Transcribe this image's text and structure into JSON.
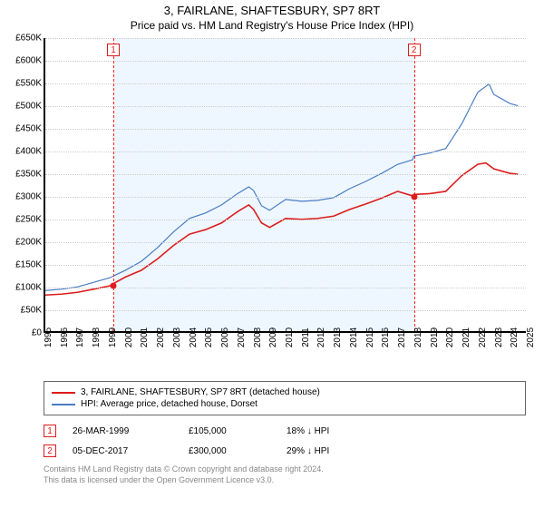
{
  "titles": {
    "line1": "3, FAIRLANE, SHAFTESBURY, SP7 8RT",
    "line2": "Price paid vs. HM Land Registry's House Price Index (HPI)"
  },
  "chart": {
    "type": "line",
    "x_start_year": 1995,
    "x_end_year": 2025,
    "x_tick_years": [
      1995,
      1996,
      1997,
      1998,
      1999,
      2000,
      2001,
      2002,
      2003,
      2004,
      2005,
      2006,
      2007,
      2008,
      2009,
      2010,
      2011,
      2012,
      2013,
      2014,
      2015,
      2016,
      2017,
      2018,
      2019,
      2020,
      2021,
      2022,
      2023,
      2024,
      2025
    ],
    "ylim": [
      0,
      650
    ],
    "ytick_step": 50,
    "ytick_labels": [
      "£0",
      "£50K",
      "£100K",
      "£150K",
      "£200K",
      "£250K",
      "£300K",
      "£350K",
      "£400K",
      "£450K",
      "£500K",
      "£550K",
      "£600K",
      "£650K"
    ],
    "grid_color": "#cccccc",
    "background_color": "#ffffff",
    "shaded_band": {
      "start_year": 1999.23,
      "end_year": 2017.93,
      "color": "#e0f0ff"
    },
    "series": {
      "property": {
        "color": "#dd1c1c",
        "line_width": 1.6,
        "label": "3, FAIRLANE, SHAFTESBURY, SP7 8RT (detached house)",
        "points": [
          [
            1995,
            80
          ],
          [
            1996,
            82
          ],
          [
            1997,
            86
          ],
          [
            1998,
            93
          ],
          [
            1999,
            100
          ],
          [
            1999.23,
            105
          ],
          [
            2000,
            120
          ],
          [
            2001,
            135
          ],
          [
            2002,
            160
          ],
          [
            2003,
            190
          ],
          [
            2004,
            215
          ],
          [
            2005,
            225
          ],
          [
            2006,
            240
          ],
          [
            2007,
            265
          ],
          [
            2007.7,
            280
          ],
          [
            2008,
            270
          ],
          [
            2008.5,
            240
          ],
          [
            2009,
            230
          ],
          [
            2010,
            250
          ],
          [
            2011,
            248
          ],
          [
            2012,
            250
          ],
          [
            2013,
            255
          ],
          [
            2014,
            270
          ],
          [
            2015,
            282
          ],
          [
            2016,
            295
          ],
          [
            2017,
            310
          ],
          [
            2017.93,
            300
          ],
          [
            2018,
            303
          ],
          [
            2019,
            305
          ],
          [
            2020,
            310
          ],
          [
            2021,
            345
          ],
          [
            2022,
            370
          ],
          [
            2022.5,
            373
          ],
          [
            2023,
            360
          ],
          [
            2024,
            350
          ],
          [
            2024.5,
            348
          ]
        ]
      },
      "hpi": {
        "color": "#4a7cc4",
        "line_width": 1.2,
        "label": "HPI: Average price, detached house, Dorset",
        "points": [
          [
            1995,
            90
          ],
          [
            1996,
            93
          ],
          [
            1997,
            98
          ],
          [
            1998,
            108
          ],
          [
            1999,
            118
          ],
          [
            2000,
            135
          ],
          [
            2001,
            155
          ],
          [
            2002,
            185
          ],
          [
            2003,
            220
          ],
          [
            2004,
            250
          ],
          [
            2005,
            262
          ],
          [
            2006,
            280
          ],
          [
            2007,
            305
          ],
          [
            2007.7,
            320
          ],
          [
            2008,
            312
          ],
          [
            2008.5,
            278
          ],
          [
            2009,
            268
          ],
          [
            2010,
            292
          ],
          [
            2011,
            288
          ],
          [
            2012,
            290
          ],
          [
            2013,
            296
          ],
          [
            2014,
            316
          ],
          [
            2015,
            332
          ],
          [
            2016,
            350
          ],
          [
            2017,
            370
          ],
          [
            2017.93,
            380
          ],
          [
            2018,
            388
          ],
          [
            2019,
            395
          ],
          [
            2020,
            405
          ],
          [
            2021,
            460
          ],
          [
            2022,
            530
          ],
          [
            2022.7,
            548
          ],
          [
            2023,
            525
          ],
          [
            2024,
            505
          ],
          [
            2024.5,
            500
          ]
        ]
      }
    },
    "sales": [
      {
        "n": 1,
        "year_frac": 1999.23,
        "date": "26-MAR-1999",
        "price": 105,
        "price_label": "£105,000",
        "diff": "18% ↓ HPI",
        "marker_color": "#dd1c1c"
      },
      {
        "n": 2,
        "year_frac": 2017.93,
        "date": "05-DEC-2017",
        "price": 300,
        "price_label": "£300,000",
        "diff": "29% ↓ HPI",
        "marker_color": "#dd1c1c"
      }
    ]
  },
  "legend": {
    "series1": "3, FAIRLANE, SHAFTESBURY, SP7 8RT (detached house)",
    "series2": "HPI: Average price, detached house, Dorset"
  },
  "disclaimer": {
    "line1": "Contains HM Land Registry data © Crown copyright and database right 2024.",
    "line2": "This data is licensed under the Open Government Licence v3.0."
  }
}
